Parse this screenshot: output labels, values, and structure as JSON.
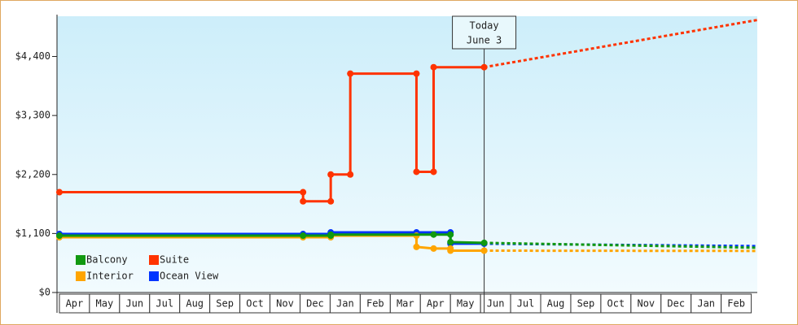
{
  "chart_data": {
    "type": "line",
    "categories": [
      "Apr",
      "May",
      "Jun",
      "Jul",
      "Aug",
      "Sep",
      "Oct",
      "Nov",
      "Dec",
      "Jan",
      "Feb",
      "Mar",
      "Apr",
      "May",
      "Jun",
      "Jul",
      "Aug",
      "Sep",
      "Oct",
      "Nov",
      "Dec",
      "Jan",
      "Feb"
    ],
    "xlim": [
      -0.08,
      23.2
    ],
    "ylim": [
      0,
      5150
    ],
    "yticks": [
      {
        "value": 0,
        "label": "$0"
      },
      {
        "value": 1100,
        "label": "$1,100"
      },
      {
        "value": 2200,
        "label": "$2,200"
      },
      {
        "value": 3300,
        "label": "$3,300"
      },
      {
        "value": 4400,
        "label": "$4,400"
      }
    ],
    "annotation": {
      "lines": [
        "Today",
        "June 3"
      ],
      "x": 14.12
    },
    "series": [
      {
        "name": "Balcony",
        "color": "#119911",
        "x": [
          0,
          8.1,
          9.02,
          9.02,
          12.44,
          13.0,
          13.0,
          14.12
        ],
        "values": [
          1060,
          1060,
          1060,
          1080,
          1080,
          1080,
          940,
          925
        ],
        "forecast": {
          "x": [
            14.12,
            23.2
          ],
          "values": [
            925,
            835
          ]
        }
      },
      {
        "name": "Suite",
        "color": "#ff3300",
        "x": [
          0,
          8.1,
          8.1,
          9.02,
          9.02,
          9.67,
          9.67,
          11.87,
          11.87,
          12.44,
          12.44,
          14.12
        ],
        "values": [
          1870,
          1870,
          1700,
          1700,
          2200,
          2200,
          4080,
          4080,
          2250,
          2250,
          4200,
          4200
        ],
        "forecast": {
          "x": [
            14.12,
            23.2
          ],
          "values": [
            4200,
            5080
          ]
        }
      },
      {
        "name": "Interior",
        "color": "#ffa500",
        "x": [
          0,
          8.1,
          9.02,
          9.02,
          11.87,
          11.87,
          12.44,
          13.0,
          13.0,
          14.12
        ],
        "values": [
          1030,
          1030,
          1030,
          1060,
          1060,
          850,
          820,
          820,
          780,
          780
        ],
        "forecast": {
          "x": [
            14.12,
            23.2
          ],
          "values": [
            780,
            775
          ]
        }
      },
      {
        "name": "Ocean View",
        "color": "#0033ff",
        "x": [
          0,
          8.1,
          9.02,
          9.02,
          11.87,
          13.0,
          13.0,
          14.12
        ],
        "values": [
          1090,
          1090,
          1090,
          1120,
          1120,
          1120,
          910,
          910
        ],
        "forecast": {
          "x": [
            14.12,
            23.2
          ],
          "values": [
            910,
            865
          ]
        }
      }
    ]
  }
}
